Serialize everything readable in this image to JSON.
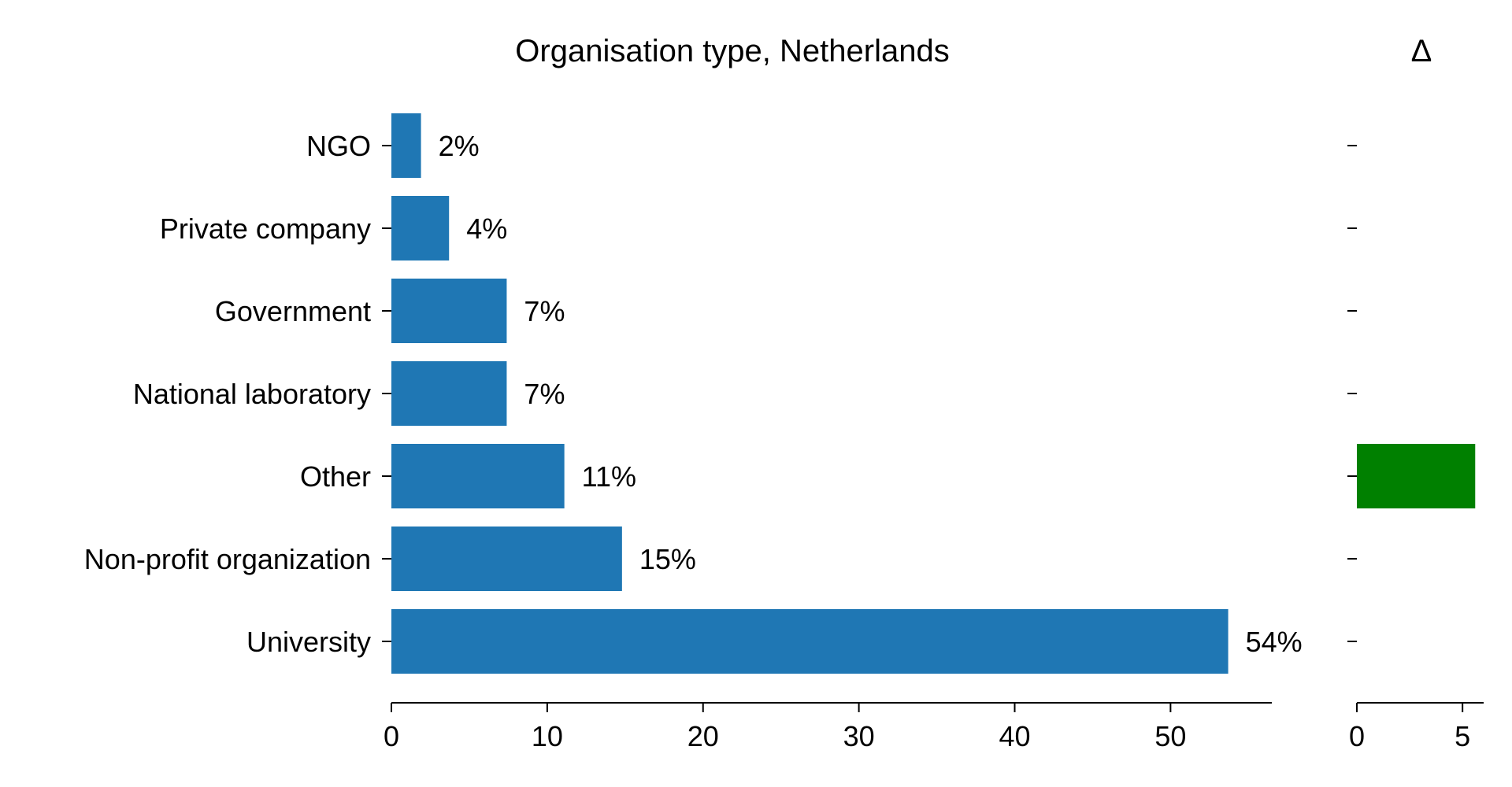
{
  "chart_data": [
    {
      "type": "bar",
      "orientation": "horizontal",
      "title": "Organisation type, Netherlands",
      "categories": [
        "NGO",
        "Private company",
        "Government",
        "National laboratory",
        "Other",
        "Non-profit organization",
        "University"
      ],
      "values": [
        1.9,
        3.7,
        7.4,
        7.4,
        11.1,
        14.8,
        53.7
      ],
      "data_labels": [
        "2%",
        "4%",
        "7%",
        "7%",
        "11%",
        "15%",
        "54%"
      ],
      "xlim": [
        0,
        56.5
      ],
      "xticks": [
        0,
        10,
        20,
        30,
        40,
        50
      ],
      "xtick_labels": [
        "0",
        "10",
        "20",
        "30",
        "40",
        "50"
      ],
      "bar_color": "#1f77b4",
      "grid": false
    },
    {
      "type": "bar",
      "orientation": "horizontal",
      "title": "Δ",
      "categories": [
        "NGO",
        "Private company",
        "Government",
        "National laboratory",
        "Other",
        "Non-profit organization",
        "University"
      ],
      "values": [
        null,
        null,
        null,
        null,
        5.6,
        null,
        null
      ],
      "missing_marker": "–",
      "xlim": [
        0,
        6.0
      ],
      "xticks": [
        0,
        5
      ],
      "xtick_labels": [
        "0",
        "5"
      ],
      "bar_color": "#008000",
      "grid": false
    }
  ]
}
